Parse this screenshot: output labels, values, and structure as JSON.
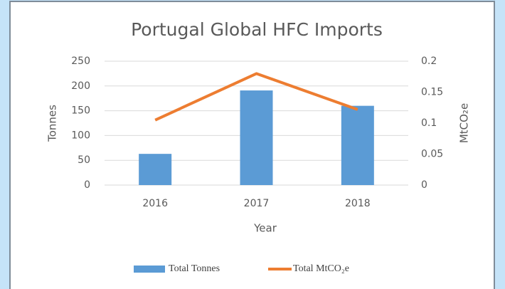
{
  "chart_data": {
    "type": "bar",
    "title": "Portugal Global HFC Imports",
    "x_label": "Year",
    "y_label": "Tonnes",
    "y2_label": "MtCO₂e",
    "categories": [
      "2016",
      "2017",
      "2018"
    ],
    "series": [
      {
        "name": "Total Tonnes",
        "type": "bar",
        "color": "#5b9bd5",
        "values": [
          63,
          191,
          160
        ]
      },
      {
        "name": "Total MtCO₂e",
        "type": "line",
        "axis": "y2",
        "color": "#ed7d31",
        "values": [
          0.105,
          0.18,
          0.122
        ]
      }
    ],
    "ylim": [
      0,
      250
    ],
    "yticks": [
      0,
      50,
      100,
      150,
      200,
      250
    ],
    "y2lim": [
      0,
      0.2
    ],
    "y2ticks": [
      0,
      0.05,
      0.1,
      0.15,
      0.2
    ],
    "grid": true,
    "legend": "bottom"
  }
}
